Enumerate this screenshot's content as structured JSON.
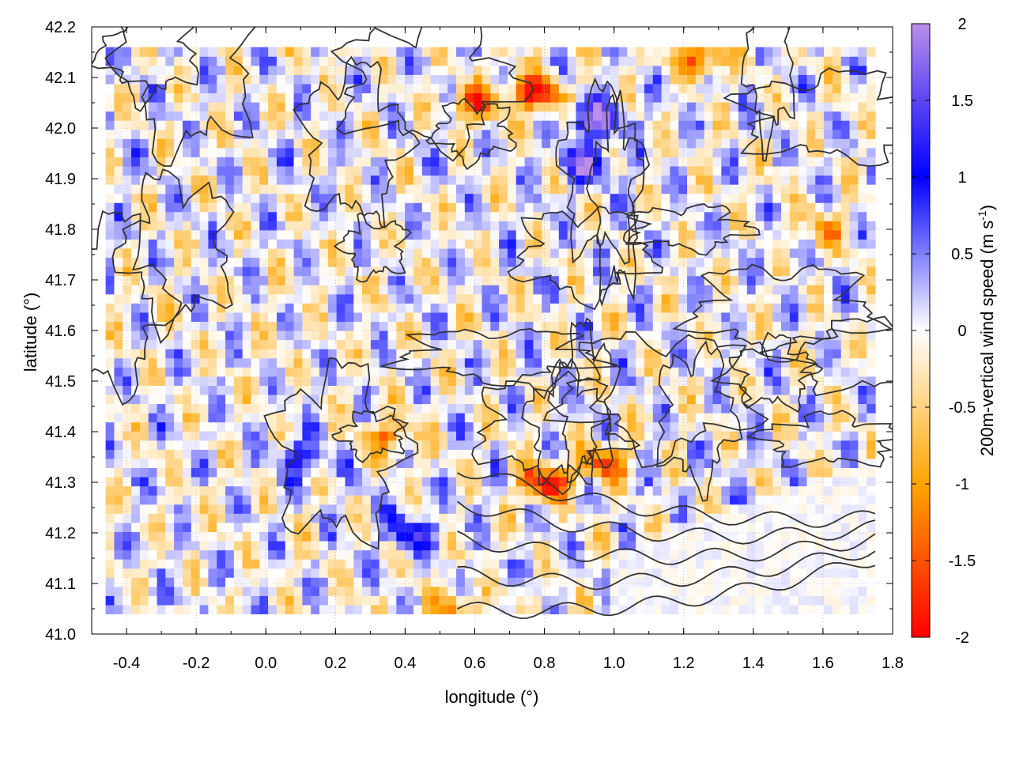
{
  "chart_data": {
    "type": "heatmap",
    "title": "",
    "xlabel": "longitude (°)",
    "ylabel": "latitude (°)",
    "colorbar_label_text": "200m-vertical wind speed (m s",
    "colorbar_label_sup": "-1",
    "colorbar_label_close": ")",
    "xlim": [
      -0.5,
      1.8
    ],
    "ylim": [
      41.0,
      42.2
    ],
    "x_ticks": [
      "-0.4",
      "-0.2",
      "0.0",
      "0.2",
      "0.4",
      "0.6",
      "0.8",
      "1.0",
      "1.2",
      "1.4",
      "1.6",
      "1.8"
    ],
    "x_tick_values": [
      -0.4,
      -0.2,
      0.0,
      0.2,
      0.4,
      0.6,
      0.8,
      1.0,
      1.2,
      1.4,
      1.6,
      1.8
    ],
    "y_ticks": [
      "41.0",
      "41.1",
      "41.2",
      "41.3",
      "41.4",
      "41.5",
      "41.6",
      "41.7",
      "41.8",
      "41.9",
      "42.0",
      "42.1",
      "42.2"
    ],
    "y_tick_values": [
      41.0,
      41.1,
      41.2,
      41.3,
      41.4,
      41.5,
      41.6,
      41.7,
      41.8,
      41.9,
      42.0,
      42.1,
      42.2
    ],
    "colorbar_range": [
      -2,
      2
    ],
    "colorbar_ticks": [
      "2",
      "1.5",
      "1",
      "0.5",
      "0",
      "-0.5",
      "-1",
      "-1.5",
      "-2"
    ],
    "colorbar_tick_values": [
      2,
      1.5,
      1,
      0.5,
      0,
      -0.5,
      -1,
      -1.5,
      -2
    ],
    "colorscale": [
      {
        "v": -2.0,
        "color": "#ff0000"
      },
      {
        "v": -1.0,
        "color": "#ffa500"
      },
      {
        "v": 0.0,
        "color": "#ffffff"
      },
      {
        "v": 1.0,
        "color": "#0000ff"
      },
      {
        "v": 2.0,
        "color": "#ba8ee9"
      }
    ],
    "grid": true,
    "contours": true,
    "contour_color": "#333333",
    "data_domain": {
      "lon": [
        -0.46,
        1.75
      ],
      "lat": [
        41.04,
        42.16
      ]
    },
    "strong_features": [
      {
        "lon": 0.78,
        "lat": 42.07,
        "w": -2.0
      },
      {
        "lon": 0.95,
        "lat": 42.02,
        "w": 2.0
      },
      {
        "lon": 0.92,
        "lat": 41.93,
        "w": 1.5
      },
      {
        "lon": 0.6,
        "lat": 42.05,
        "w": -1.5
      },
      {
        "lon": 1.25,
        "lat": 42.14,
        "w": -1.5
      },
      {
        "lon": 0.8,
        "lat": 41.3,
        "w": -2.0
      },
      {
        "lon": 0.97,
        "lat": 41.34,
        "w": -1.5
      },
      {
        "lon": 0.36,
        "lat": 41.39,
        "w": -1.2
      },
      {
        "lon": 0.42,
        "lat": 41.2,
        "w": 1.2
      },
      {
        "lon": 0.1,
        "lat": 41.35,
        "w": 1.0
      },
      {
        "lon": 0.55,
        "lat": 41.05,
        "w": -1.0
      },
      {
        "lon": 1.6,
        "lat": 41.8,
        "w": -0.8
      }
    ]
  }
}
